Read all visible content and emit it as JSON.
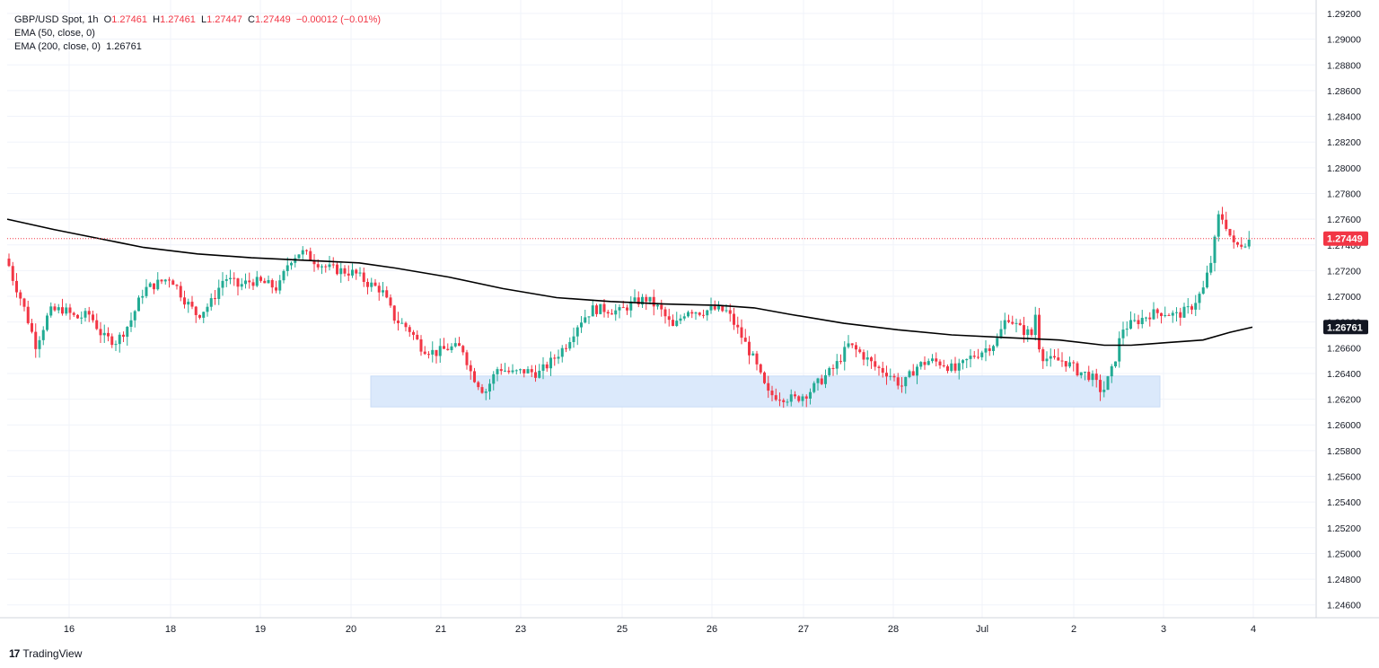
{
  "legend": {
    "symbol": "GBP/USD Spot, 1h",
    "o_label": "O",
    "o_value": "1.27461",
    "h_label": "H",
    "h_value": "1.27461",
    "l_label": "L",
    "l_value": "1.27447",
    "c_label": "C",
    "c_value": "1.27449",
    "change": "−0.00012 (−0.01%)",
    "ema50": "EMA (50, close, 0)",
    "ema200": "EMA (200, close, 0)",
    "ema200_value": "1.26761"
  },
  "brand": {
    "name": "TradingView",
    "logo": "17"
  },
  "colors": {
    "up": "#22ab94",
    "down": "#f23645",
    "ema": "#000000",
    "zone": "#dbe9fb",
    "last_price": "#f23645",
    "ema_tag": "#131722"
  },
  "chart_data": {
    "type": "candlestick",
    "title": "GBP/USD Spot, 1h",
    "ylim": [
      1.245,
      1.2925
    ],
    "y_ticks": [
      "1.29200",
      "1.29000",
      "1.28800",
      "1.28600",
      "1.28400",
      "1.28200",
      "1.28000",
      "1.27800",
      "1.27600",
      "1.27400",
      "1.27200",
      "1.27000",
      "1.26800",
      "1.26600",
      "1.26400",
      "1.26200",
      "1.26000",
      "1.25800",
      "1.25600",
      "1.25400",
      "1.25200",
      "1.25000",
      "1.24800",
      "1.24600"
    ],
    "x_ticks": [
      "16",
      "18",
      "19",
      "20",
      "21",
      "23",
      "25",
      "26",
      "27",
      "28",
      "Jul",
      "2",
      "3",
      "4"
    ],
    "last_price": "1.27449",
    "ema200_label": "1.26761",
    "support_zone": {
      "low": 1.2614,
      "high": 1.2638,
      "from_day": "20",
      "to_day": "3"
    },
    "price_path": [
      [
        0,
        1.2752
      ],
      [
        12,
        1.2718
      ],
      [
        25,
        1.2695
      ],
      [
        40,
        1.2662
      ],
      [
        55,
        1.2688
      ],
      [
        70,
        1.269
      ],
      [
        85,
        1.2683
      ],
      [
        100,
        1.2686
      ],
      [
        115,
        1.2668
      ],
      [
        130,
        1.2665
      ],
      [
        145,
        1.268
      ],
      [
        160,
        1.2705
      ],
      [
        175,
        1.271
      ],
      [
        190,
        1.2715
      ],
      [
        205,
        1.2698
      ],
      [
        220,
        1.2685
      ],
      [
        235,
        1.2695
      ],
      [
        250,
        1.2715
      ],
      [
        265,
        1.2708
      ],
      [
        280,
        1.2712
      ],
      [
        295,
        1.271
      ],
      [
        310,
        1.2706
      ],
      [
        322,
        1.2728
      ],
      [
        335,
        1.2735
      ],
      [
        350,
        1.2728
      ],
      [
        365,
        1.2722
      ],
      [
        380,
        1.272
      ],
      [
        395,
        1.2718
      ],
      [
        410,
        1.271
      ],
      [
        425,
        1.2705
      ],
      [
        440,
        1.2682
      ],
      [
        455,
        1.2675
      ],
      [
        470,
        1.266
      ],
      [
        485,
        1.2656
      ],
      [
        500,
        1.266
      ],
      [
        515,
        1.266
      ],
      [
        525,
        1.264
      ],
      [
        540,
        1.2625
      ],
      [
        555,
        1.2645
      ],
      [
        570,
        1.264
      ],
      [
        585,
        1.2642
      ],
      [
        600,
        1.264
      ],
      [
        615,
        1.265
      ],
      [
        630,
        1.2662
      ],
      [
        645,
        1.268
      ],
      [
        660,
        1.269
      ],
      [
        675,
        1.269
      ],
      [
        690,
        1.2688
      ],
      [
        705,
        1.2695
      ],
      [
        720,
        1.2698
      ],
      [
        735,
        1.269
      ],
      [
        750,
        1.2675
      ],
      [
        765,
        1.269
      ],
      [
        780,
        1.2688
      ],
      [
        795,
        1.269
      ],
      [
        810,
        1.2688
      ],
      [
        825,
        1.267
      ],
      [
        840,
        1.265
      ],
      [
        855,
        1.2624
      ],
      [
        870,
        1.2622
      ],
      [
        885,
        1.262
      ],
      [
        900,
        1.2625
      ],
      [
        915,
        1.2635
      ],
      [
        930,
        1.2645
      ],
      [
        945,
        1.2662
      ],
      [
        960,
        1.2655
      ],
      [
        975,
        1.2645
      ],
      [
        990,
        1.264
      ],
      [
        1005,
        1.263
      ],
      [
        1020,
        1.2645
      ],
      [
        1035,
        1.265
      ],
      [
        1050,
        1.2648
      ],
      [
        1065,
        1.2642
      ],
      [
        1080,
        1.2652
      ],
      [
        1095,
        1.2658
      ],
      [
        1110,
        1.2665
      ],
      [
        1122,
        1.2685
      ],
      [
        1135,
        1.2675
      ],
      [
        1150,
        1.267
      ],
      [
        1155,
        1.2695
      ],
      [
        1158,
        1.2655
      ],
      [
        1170,
        1.265
      ],
      [
        1185,
        1.265
      ],
      [
        1200,
        1.2642
      ],
      [
        1215,
        1.2638
      ],
      [
        1228,
        1.2625
      ],
      [
        1240,
        1.2645
      ],
      [
        1250,
        1.2675
      ],
      [
        1265,
        1.268
      ],
      [
        1280,
        1.2686
      ],
      [
        1295,
        1.2688
      ],
      [
        1310,
        1.2685
      ],
      [
        1325,
        1.269
      ],
      [
        1340,
        1.2705
      ],
      [
        1350,
        1.273
      ],
      [
        1358,
        1.2765
      ],
      [
        1366,
        1.2755
      ],
      [
        1375,
        1.2738
      ],
      [
        1385,
        1.2742
      ],
      [
        1395,
        1.2745
      ]
    ],
    "ema200_path": [
      [
        8,
        1.276
      ],
      [
        60,
        1.2752
      ],
      [
        110,
        1.2745
      ],
      [
        160,
        1.2738
      ],
      [
        220,
        1.2733
      ],
      [
        280,
        1.273
      ],
      [
        340,
        1.2728
      ],
      [
        400,
        1.2726
      ],
      [
        440,
        1.2722
      ],
      [
        500,
        1.2715
      ],
      [
        560,
        1.2706
      ],
      [
        620,
        1.2699
      ],
      [
        680,
        1.2696
      ],
      [
        740,
        1.2694
      ],
      [
        800,
        1.2693
      ],
      [
        840,
        1.2691
      ],
      [
        880,
        1.2686
      ],
      [
        940,
        1.2679
      ],
      [
        1000,
        1.2674
      ],
      [
        1060,
        1.267
      ],
      [
        1120,
        1.2668
      ],
      [
        1180,
        1.2666
      ],
      [
        1230,
        1.2662
      ],
      [
        1260,
        1.2662
      ],
      [
        1300,
        1.2664
      ],
      [
        1340,
        1.2666
      ],
      [
        1370,
        1.2672
      ],
      [
        1395,
        1.2676
      ]
    ]
  }
}
